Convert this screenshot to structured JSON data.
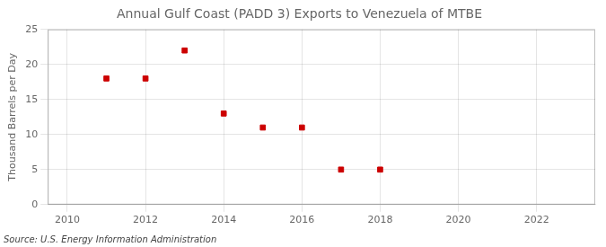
{
  "chart_data": {
    "type": "scatter",
    "title": "Annual Gulf Coast (PADD 3) Exports to Venezuela of MTBE",
    "ylabel": "Thousand Barrels per Day",
    "annotations": [
      "Source: U.S. Energy Information Administration"
    ],
    "x": [
      2011,
      2012,
      2013,
      2014,
      2015,
      2016,
      2017,
      2018
    ],
    "values": [
      18,
      18,
      22,
      13,
      11,
      11,
      5,
      5
    ],
    "color": "#cc0000",
    "marker": "square",
    "xlim": [
      2009.5,
      2023.5
    ],
    "xticks": [
      2010,
      2012,
      2014,
      2016,
      2018,
      2020,
      2022
    ],
    "ylim": [
      0,
      25
    ],
    "yticks": [
      0,
      5,
      10,
      15,
      20,
      25
    ],
    "grid": true
  }
}
